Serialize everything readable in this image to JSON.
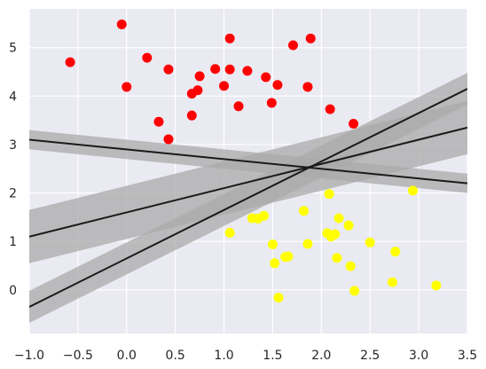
{
  "chart_data": {
    "type": "scatter",
    "title": "",
    "xlabel": "",
    "ylabel": "",
    "xlim": [
      -1.0,
      3.5
    ],
    "ylim": [
      -0.9,
      5.8
    ],
    "grid": true,
    "x_ticks": [
      -1.0,
      -0.5,
      0.0,
      0.5,
      1.0,
      1.5,
      2.0,
      2.5,
      3.0,
      3.5
    ],
    "x_tick_labels": [
      "−1.0",
      "−0.5",
      "0.0",
      "0.5",
      "1.0",
      "1.5",
      "2.0",
      "2.5",
      "3.0",
      "3.5"
    ],
    "y_ticks": [
      0,
      1,
      2,
      3,
      4,
      5
    ],
    "y_tick_labels": [
      "0",
      "1",
      "2",
      "3",
      "4",
      "5"
    ],
    "colors": {
      "background": "#eaeaf2",
      "grid": "#ffffff",
      "series_red": "#ff0000",
      "series_yellow": "#ffff00",
      "line": "#1a1a1a",
      "band": "#a9a9a9"
    },
    "series": [
      {
        "color": "red",
        "points": [
          [
            -0.58,
            4.7
          ],
          [
            -0.05,
            5.48
          ],
          [
            0.0,
            4.19
          ],
          [
            0.21,
            4.79
          ],
          [
            0.33,
            3.47
          ],
          [
            0.43,
            4.55
          ],
          [
            0.43,
            3.11
          ],
          [
            0.67,
            4.05
          ],
          [
            0.67,
            3.6
          ],
          [
            0.73,
            4.12
          ],
          [
            0.75,
            4.41
          ],
          [
            0.91,
            4.56
          ],
          [
            1.0,
            4.21
          ],
          [
            1.06,
            5.19
          ],
          [
            1.06,
            4.55
          ],
          [
            1.15,
            3.79
          ],
          [
            1.24,
            4.52
          ],
          [
            1.43,
            4.39
          ],
          [
            1.49,
            3.86
          ],
          [
            1.55,
            4.23
          ],
          [
            1.71,
            5.05
          ],
          [
            1.86,
            4.19
          ],
          [
            1.89,
            5.19
          ],
          [
            2.09,
            3.73
          ],
          [
            2.33,
            3.43
          ]
        ]
      },
      {
        "color": "yellow",
        "points": [
          [
            1.06,
            1.18
          ],
          [
            1.29,
            1.48
          ],
          [
            1.35,
            1.47
          ],
          [
            1.41,
            1.53
          ],
          [
            1.5,
            0.94
          ],
          [
            1.52,
            0.55
          ],
          [
            1.56,
            -0.16
          ],
          [
            1.63,
            0.68
          ],
          [
            1.66,
            0.69
          ],
          [
            1.82,
            1.63
          ],
          [
            1.86,
            0.95
          ],
          [
            2.06,
            1.17
          ],
          [
            2.08,
            1.98
          ],
          [
            2.1,
            1.1
          ],
          [
            2.14,
            1.15
          ],
          [
            2.16,
            0.66
          ],
          [
            2.18,
            1.48
          ],
          [
            2.28,
            1.33
          ],
          [
            2.3,
            0.49
          ],
          [
            2.34,
            -0.02
          ],
          [
            2.5,
            0.98
          ],
          [
            2.73,
            0.16
          ],
          [
            2.76,
            0.79
          ],
          [
            2.94,
            2.05
          ],
          [
            3.18,
            0.09
          ]
        ]
      }
    ],
    "lines": [
      {
        "slope": 1.0,
        "intercept": 0.65,
        "margin": 0.33
      },
      {
        "slope": 0.5,
        "intercept": 1.6,
        "margin": 0.55
      },
      {
        "slope": -0.2,
        "intercept": 2.9,
        "margin": 0.2
      }
    ]
  }
}
